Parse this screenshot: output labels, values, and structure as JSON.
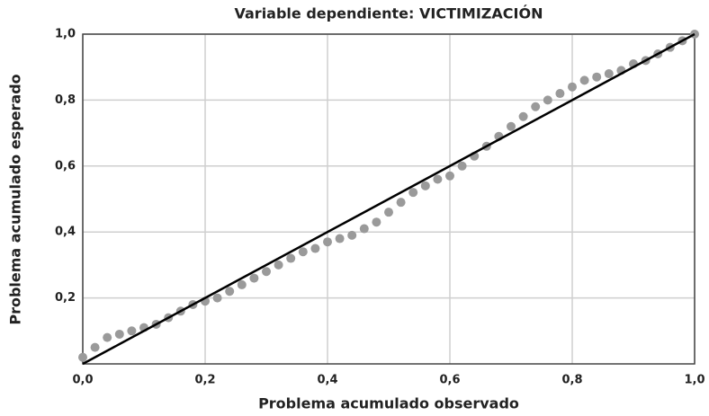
{
  "chart_data": {
    "type": "scatter",
    "title": "Variable dependiente: VICTIMIZACIÓN",
    "x_label": "Problema acumulado observado",
    "y_label": "Problema acumulado esperado",
    "x": [
      0,
      0.02,
      0.04,
      0.06,
      0.08,
      0.1,
      0.12,
      0.14,
      0.16,
      0.18,
      0.2,
      0.22,
      0.24,
      0.26,
      0.28,
      0.3,
      0.32,
      0.34,
      0.36,
      0.38,
      0.4,
      0.42,
      0.44,
      0.46,
      0.48,
      0.5,
      0.52,
      0.54,
      0.56,
      0.58,
      0.6,
      0.62,
      0.64,
      0.66,
      0.68,
      0.7,
      0.72,
      0.74,
      0.76,
      0.78,
      0.8,
      0.82,
      0.84,
      0.86,
      0.88,
      0.9,
      0.92,
      0.94,
      0.96,
      0.98,
      1.0
    ],
    "values": [
      0.02,
      0.05,
      0.08,
      0.09,
      0.1,
      0.11,
      0.12,
      0.14,
      0.16,
      0.18,
      0.19,
      0.2,
      0.22,
      0.24,
      0.26,
      0.28,
      0.3,
      0.32,
      0.34,
      0.35,
      0.37,
      0.38,
      0.39,
      0.41,
      0.43,
      0.46,
      0.49,
      0.52,
      0.54,
      0.56,
      0.57,
      0.6,
      0.63,
      0.66,
      0.69,
      0.72,
      0.75,
      0.78,
      0.8,
      0.82,
      0.84,
      0.86,
      0.87,
      0.88,
      0.89,
      0.91,
      0.92,
      0.94,
      0.96,
      0.98,
      1.0
    ],
    "color": "#9a9a9a",
    "xlim": [
      0,
      1
    ],
    "ylim": [
      0,
      1
    ],
    "xticks": [
      {
        "value": 0,
        "label": "0,0"
      },
      {
        "value": 0.2,
        "label": "0,2"
      },
      {
        "value": 0.4,
        "label": "0,4"
      },
      {
        "value": 0.6,
        "label": "0,6"
      },
      {
        "value": 0.8,
        "label": "0,8"
      },
      {
        "value": 1,
        "label": "1,0"
      }
    ],
    "yticks": [
      {
        "value": 0.2,
        "label": "0,2"
      },
      {
        "value": 0.4,
        "label": "0,4"
      },
      {
        "value": 0.6,
        "label": "0,6"
      },
      {
        "value": 0.8,
        "label": "0,8"
      },
      {
        "value": 1,
        "label": "1,0"
      }
    ],
    "grid": true
  }
}
